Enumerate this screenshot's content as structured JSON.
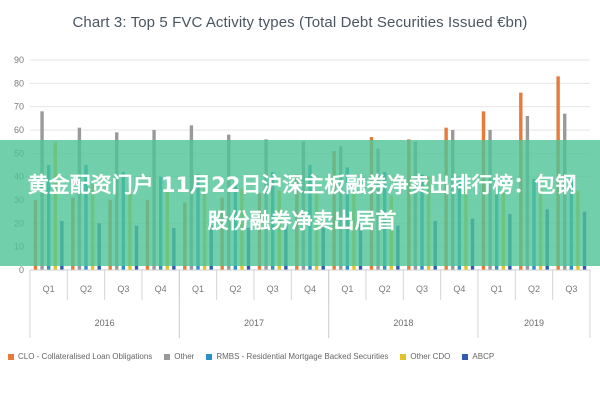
{
  "chart_data": {
    "type": "bar",
    "title": "Chart 3: Top 5 FVC Activity types (Total Debt Securities Issued €bn)",
    "ylim": [
      0,
      90
    ],
    "yticks": [
      0,
      10,
      20,
      30,
      40,
      50,
      60,
      70,
      80,
      90
    ],
    "grid": true,
    "legend_position": "bottom",
    "categories": [
      "Q1",
      "Q2",
      "Q3",
      "Q4",
      "Q1",
      "Q2",
      "Q3",
      "Q4",
      "Q1",
      "Q2",
      "Q3",
      "Q4",
      "Q1",
      "Q2",
      "Q3"
    ],
    "years": [
      {
        "label": "2016",
        "span": [
          0,
          3
        ]
      },
      {
        "label": "2017",
        "span": [
          4,
          7
        ]
      },
      {
        "label": "2018",
        "span": [
          8,
          11
        ]
      },
      {
        "label": "2019",
        "span": [
          12,
          14
        ]
      }
    ],
    "series": [
      {
        "name": "CLO - Collateralised Loan Obligations",
        "color": "#e87b3a",
        "values": [
          30,
          31,
          30,
          30,
          29,
          31,
          33,
          41,
          51,
          57,
          56,
          61,
          68,
          76,
          83
        ]
      },
      {
        "name": "Other",
        "color": "#9a9a9a",
        "values": [
          68,
          61,
          59,
          60,
          62,
          58,
          56,
          55,
          53,
          52,
          55,
          60,
          60,
          66,
          67
        ]
      },
      {
        "name": "RMBS - Residential Mortgage Backed Securities",
        "color": "#2d8fc4",
        "values": [
          45,
          45,
          42,
          40,
          41,
          40,
          42,
          45,
          44,
          42,
          41,
          40,
          40,
          39,
          38
        ]
      },
      {
        "name": "Other CDO",
        "color": "#e6c22a",
        "values": [
          55,
          37,
          35,
          34,
          36,
          35,
          34,
          34,
          33,
          32,
          40,
          36,
          33,
          35,
          34
        ]
      },
      {
        "name": "ABCP",
        "color": "#2f5bb0",
        "values": [
          21,
          20,
          19,
          18,
          19,
          18,
          19,
          21,
          20,
          19,
          21,
          22,
          24,
          26,
          25
        ]
      }
    ]
  },
  "overlay": {
    "text": "黄金配资门户 11月22日沪深主板融券净卖出排行榜：包钢股份融券净卖出居首"
  }
}
